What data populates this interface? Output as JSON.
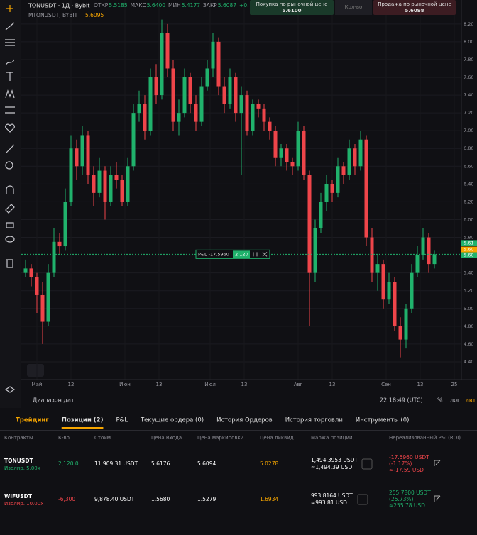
{
  "header": {
    "symbol": "TONUSDT · 1Д · Bybit",
    "ohlc": [
      {
        "label": "ОТКР",
        "value": "5.5185"
      },
      {
        "label": "МАКС",
        "value": "5.6400"
      },
      {
        "label": "МИН",
        "value": "5.4177"
      },
      {
        "label": "ЗАКР",
        "value": "5.6087"
      }
    ],
    "change": "+0.",
    "mark_symbol": "MTONUSDT, BYBIT",
    "mark_price": "5.6095",
    "buy": {
      "label": "Покупка по рыночной цене",
      "price": "5.6100"
    },
    "qty": "Кол-во",
    "sell": {
      "label": "Продажа по рыночной цене",
      "price": "5.6098"
    }
  },
  "chart_data": {
    "type": "candlestick",
    "up_color": "#20b26c",
    "down_color": "#ef454a",
    "x": [
      -4,
      -2,
      0,
      2,
      4,
      6,
      8,
      10,
      12,
      14,
      16,
      18,
      20,
      22,
      24,
      26,
      28,
      30,
      32,
      34,
      36,
      38,
      40,
      42,
      44,
      46,
      48,
      50,
      52,
      54,
      56,
      58,
      60,
      62,
      64,
      66,
      68,
      70,
      72,
      74,
      76,
      78,
      80,
      82,
      84,
      86,
      88,
      90,
      92,
      94,
      96,
      98,
      100,
      102,
      104,
      106,
      108,
      110,
      112,
      114,
      116,
      118,
      120,
      122,
      124,
      126,
      128,
      130,
      132,
      134,
      136,
      138,
      140
    ],
    "open": [
      5.4,
      5.45,
      5.35,
      5.15,
      4.85,
      5.4,
      5.75,
      5.7,
      6.2,
      6.8,
      6.6,
      6.95,
      6.5,
      6.3,
      6.55,
      6.2,
      6.5,
      6.45,
      6.2,
      6.6,
      7.2,
      7.3,
      7.0,
      7.6,
      7.4,
      8.1,
      7.7,
      7.1,
      7.2,
      7.6,
      7.3,
      7.1,
      7.5,
      7.7,
      8.0,
      7.5,
      7.3,
      7.6,
      7.2,
      7.4,
      7.0,
      7.3,
      7.25,
      7.1,
      7.0,
      6.7,
      6.8,
      6.65,
      6.6,
      7.0,
      6.5,
      5.4,
      5.9,
      6.2,
      6.4,
      6.3,
      6.6,
      6.5,
      6.8,
      6.6,
      6.9,
      5.8,
      5.4,
      5.5,
      5.1,
      5.3,
      4.8,
      4.65,
      5.0,
      5.4,
      5.6,
      5.8,
      5.5
    ],
    "high": [
      5.55,
      5.5,
      5.4,
      5.3,
      5.5,
      5.9,
      5.85,
      6.35,
      6.95,
      6.9,
      7.05,
      7.0,
      6.6,
      6.7,
      6.6,
      6.6,
      6.65,
      6.5,
      6.7,
      7.3,
      7.45,
      7.4,
      7.7,
      7.75,
      8.25,
      8.2,
      7.8,
      7.35,
      7.7,
      7.65,
      7.4,
      7.6,
      7.8,
      8.1,
      8.05,
      7.6,
      7.7,
      7.65,
      7.5,
      7.45,
      7.35,
      7.35,
      7.3,
      7.15,
      7.05,
      6.85,
      6.85,
      6.7,
      7.1,
      7.05,
      6.55,
      6.0,
      6.3,
      6.5,
      6.45,
      6.7,
      6.65,
      6.9,
      6.85,
      7.0,
      6.95,
      5.9,
      5.6,
      5.55,
      5.4,
      5.35,
      4.9,
      5.05,
      5.5,
      5.7,
      5.9,
      5.85,
      5.65
    ],
    "low": [
      5.35,
      5.25,
      4.95,
      4.6,
      4.8,
      5.35,
      5.6,
      5.65,
      6.15,
      6.45,
      6.5,
      6.4,
      6.15,
      6.25,
      6.0,
      6.15,
      6.35,
      6.15,
      6.15,
      6.55,
      7.1,
      6.9,
      6.95,
      7.3,
      7.35,
      7.6,
      7.0,
      6.95,
      7.15,
      7.2,
      7.0,
      7.05,
      7.45,
      7.6,
      7.4,
      7.2,
      7.25,
      7.1,
      6.5,
      6.95,
      6.95,
      7.15,
      7.0,
      6.9,
      6.6,
      6.6,
      6.55,
      6.5,
      6.55,
      6.45,
      4.8,
      5.3,
      5.85,
      6.1,
      6.2,
      6.25,
      6.4,
      6.45,
      6.5,
      6.55,
      5.7,
      5.3,
      5.2,
      5.0,
      5.05,
      4.75,
      4.45,
      4.55,
      4.95,
      5.35,
      5.55,
      5.4,
      5.45
    ],
    "close": [
      5.45,
      5.35,
      5.15,
      4.85,
      5.4,
      5.75,
      5.7,
      6.2,
      6.8,
      6.6,
      6.95,
      6.5,
      6.3,
      6.55,
      6.2,
      6.5,
      6.45,
      6.2,
      6.6,
      7.2,
      7.3,
      7.0,
      7.6,
      7.4,
      8.1,
      7.7,
      7.1,
      7.2,
      7.6,
      7.3,
      7.1,
      7.5,
      7.7,
      8.0,
      7.5,
      7.3,
      7.6,
      7.2,
      7.4,
      7.0,
      7.3,
      7.25,
      7.1,
      7.0,
      6.7,
      6.8,
      6.65,
      6.6,
      7.0,
      6.5,
      5.4,
      5.9,
      6.2,
      6.4,
      6.3,
      6.6,
      6.5,
      6.8,
      6.6,
      6.9,
      5.8,
      5.4,
      5.5,
      5.1,
      5.3,
      4.8,
      4.65,
      5.0,
      5.4,
      5.6,
      5.8,
      5.5,
      5.61
    ],
    "xlim": [
      -5.5,
      149.5
    ],
    "xticks": [
      {
        "value": 0,
        "label": "Май"
      },
      12,
      {
        "value": 31,
        "label": "Июн"
      },
      {
        "value": 43,
        "label": "13"
      },
      {
        "value": 61,
        "label": "Июл"
      },
      {
        "value": 73,
        "label": "13"
      },
      {
        "value": 92,
        "label": "Авг"
      },
      {
        "value": 104,
        "label": "13"
      },
      {
        "value": 123,
        "label": "Сен"
      },
      {
        "value": 135,
        "label": "13"
      },
      {
        "value": 147,
        "label": "25"
      }
    ],
    "ylim": [
      4.2,
      8.47
    ],
    "yticks": [
      {
        "value": 4.4,
        "label": "4.40"
      },
      {
        "value": 4.6,
        "label": "4.60"
      },
      {
        "value": 4.8,
        "label": "4.80"
      },
      {
        "value": 5.0,
        "label": "5.00"
      },
      {
        "value": 5.2,
        "label": "5.20"
      },
      {
        "value": 5.4,
        "label": "5.40"
      },
      {
        "value": 5.6,
        "label": "5.60"
      },
      {
        "value": 5.8,
        "label": "5.80"
      },
      {
        "value": 6.0,
        "label": "6.00"
      },
      {
        "value": 6.2,
        "label": "6.20"
      },
      {
        "value": 6.4,
        "label": "6.40"
      },
      {
        "value": 6.6,
        "label": "6.60"
      },
      {
        "value": 6.8,
        "label": "6.80"
      },
      {
        "value": 7.0,
        "label": "7.00"
      },
      {
        "value": 7.2,
        "label": "7.20"
      },
      {
        "value": 7.4,
        "label": "7.40"
      },
      {
        "value": 7.6,
        "label": "7.60"
      },
      {
        "value": 7.8,
        "label": "7.80"
      },
      {
        "value": 8.0,
        "label": "8.00"
      },
      {
        "value": 8.2,
        "label": "8.20"
      }
    ],
    "price_labels": [
      {
        "value": 5.61,
        "label": "5.61",
        "color": "#20b26c"
      },
      {
        "value": 5.6,
        "label": "5.60",
        "color": "#f7a600"
      },
      {
        "value": 5.6,
        "label": "5.60",
        "color": "#20b26c"
      }
    ],
    "position": {
      "pnl": "P&L -17.5960",
      "qty": "2 120"
    }
  },
  "footer": {
    "range": "Диапазон дат",
    "time": "22:18:49 (UTC)",
    "percent": "%",
    "log": "лог",
    "auto": "авт"
  },
  "tabs": [
    "Трейдинг",
    "Позиции (2)",
    "P&L",
    "Текущие ордера (0)",
    "История Ордеров",
    "История торговли",
    "Инструменты (0)"
  ],
  "table": {
    "columns": [
      "Контракты",
      "К-во",
      "Стоим.",
      "Цена Входа",
      "Цена маркировки",
      "Цена ликвид.",
      "Маржа позиции",
      "Нереализованный P&L(ROI)"
    ],
    "rows": [
      {
        "contract": "TONUSDT",
        "mode": "Изолир. 5.00x",
        "qty": "2,120.0",
        "value": "11,909.31 USDT",
        "entry": "5.6176",
        "mark": "5.6094",
        "liq": "5.0278",
        "margin": "1,494.3953 USDT",
        "margin_usd": "≈1,494.39 USD",
        "pnl": "-17.5960 USDT",
        "roi": "(-1.17%)",
        "pnl_usd": "≈-17.59 USD"
      },
      {
        "contract": "WIFUSDT",
        "mode": "Изолир. 10.00x",
        "qty": "-6,300",
        "value": "9,878.40 USDT",
        "entry": "1.5680",
        "mark": "1.5279",
        "liq": "1.6934",
        "margin": "993.8164 USDT",
        "margin_usd": "≈993.81 USD",
        "pnl": "255.7800 USDT",
        "roi": "(25.73%)",
        "pnl_usd": "≈255.78 USD"
      }
    ]
  }
}
